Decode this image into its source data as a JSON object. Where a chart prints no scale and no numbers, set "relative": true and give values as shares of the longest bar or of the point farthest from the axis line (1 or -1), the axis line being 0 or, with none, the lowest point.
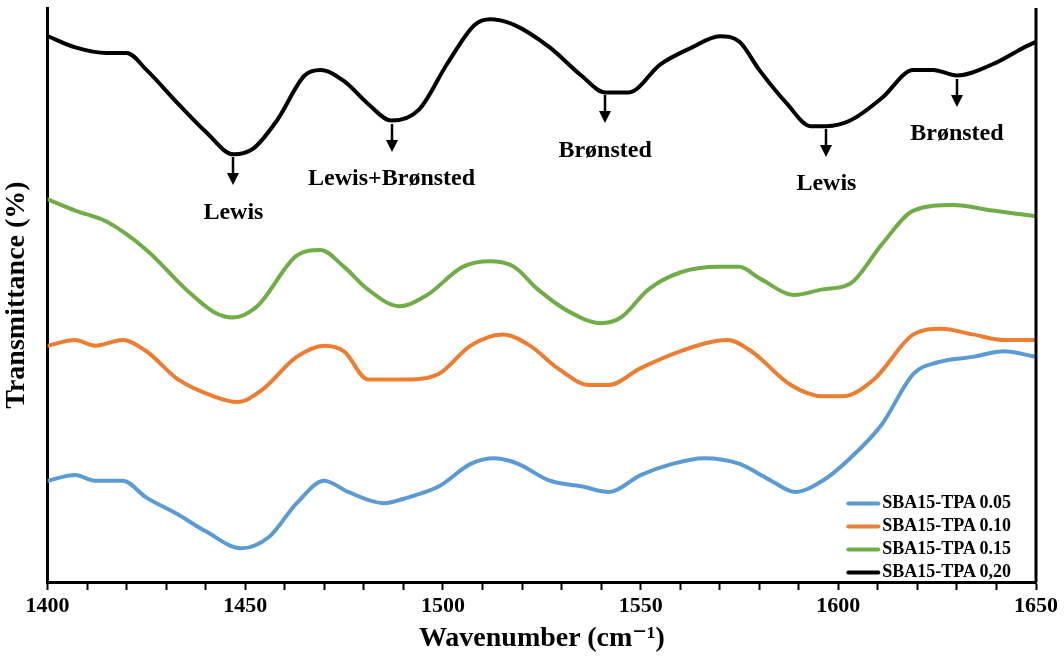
{
  "chart_data": {
    "type": "line",
    "relative": true,
    "xlabel": "Wavenumber (cm⁻¹)",
    "ylabel": "Transmittance (%)",
    "xlim": [
      1400,
      1650
    ],
    "xticks": [
      1400,
      {
        "value": 1410,
        "label": null
      },
      {
        "value": 1420,
        "label": null
      },
      {
        "value": 1430,
        "label": null
      },
      {
        "value": 1440,
        "label": null
      },
      1450,
      {
        "value": 1460,
        "label": null
      },
      {
        "value": 1470,
        "label": null
      },
      {
        "value": 1480,
        "label": null
      },
      {
        "value": 1490,
        "label": null
      },
      1500,
      {
        "value": 1510,
        "label": null
      },
      {
        "value": 1520,
        "label": null
      },
      {
        "value": 1530,
        "label": null
      },
      {
        "value": 1540,
        "label": null
      },
      1550,
      {
        "value": 1560,
        "label": null
      },
      {
        "value": 1570,
        "label": null
      },
      {
        "value": 1580,
        "label": null
      },
      {
        "value": 1590,
        "label": null
      },
      1600,
      {
        "value": 1610,
        "label": null
      },
      {
        "value": 1620,
        "label": null
      },
      {
        "value": 1630,
        "label": null
      },
      {
        "value": 1640,
        "label": null
      },
      1650
    ],
    "grid": false,
    "legend": "bottom right",
    "marker": "none",
    "line_style": "solid",
    "annotations": [
      {
        "text": "Lewis",
        "x": 1447,
        "y": 0.76
      },
      {
        "text": "Lewis+Brønsted",
        "x": 1487,
        "y": 0.82
      },
      {
        "text": "Brønsted",
        "x": 1541,
        "y": 0.87
      },
      {
        "text": "Lewis",
        "x": 1597,
        "y": 0.81
      },
      {
        "text": "Brønsted",
        "x": 1630,
        "y": 0.9
      }
    ],
    "series": [
      {
        "name": "SBA15-TPA 0.05",
        "color": "#5b9bd5",
        "x": [
          1400,
          1407,
          1412,
          1419,
          1425,
          1433,
          1440,
          1449,
          1456,
          1463,
          1470,
          1476,
          1485,
          1491,
          1499,
          1507,
          1513,
          1519,
          1527,
          1535,
          1542,
          1550,
          1558,
          1566,
          1575,
          1583,
          1589,
          1596,
          1603,
          1611,
          1619,
          1625,
          1634,
          1642,
          1650
        ],
        "values": [
          0.18,
          0.19,
          0.18,
          0.18,
          0.15,
          0.12,
          0.09,
          0.06,
          0.08,
          0.14,
          0.18,
          0.16,
          0.14,
          0.15,
          0.17,
          0.21,
          0.22,
          0.21,
          0.18,
          0.17,
          0.16,
          0.19,
          0.21,
          0.22,
          0.21,
          0.18,
          0.16,
          0.18,
          0.22,
          0.28,
          0.37,
          0.39,
          0.4,
          0.41,
          0.4
        ]
      },
      {
        "name": "SBA15-TPA 0.10",
        "color": "#ed7d31",
        "x": [
          1400,
          1407,
          1412,
          1419,
          1425,
          1433,
          1442,
          1448,
          1454,
          1463,
          1470,
          1475,
          1481,
          1492,
          1499,
          1507,
          1515,
          1522,
          1529,
          1537,
          1542,
          1550,
          1560,
          1572,
          1578,
          1588,
          1596,
          1601,
          1609,
          1619,
          1626,
          1634,
          1642,
          1650
        ],
        "values": [
          0.42,
          0.43,
          0.42,
          0.43,
          0.41,
          0.36,
          0.33,
          0.32,
          0.34,
          0.4,
          0.42,
          0.41,
          0.36,
          0.36,
          0.37,
          0.42,
          0.44,
          0.42,
          0.38,
          0.35,
          0.35,
          0.38,
          0.41,
          0.43,
          0.41,
          0.35,
          0.33,
          0.33,
          0.36,
          0.44,
          0.45,
          0.44,
          0.43,
          0.43
        ]
      },
      {
        "name": "SBA15-TPA 0.15",
        "color": "#70ad47",
        "x": [
          1400,
          1407,
          1415,
          1425,
          1435,
          1442,
          1447,
          1453,
          1463,
          1469,
          1475,
          1481,
          1489,
          1496,
          1505,
          1512,
          1518,
          1524,
          1532,
          1540,
          1545,
          1552,
          1560,
          1570,
          1575,
          1580,
          1589,
          1596,
          1603,
          1611,
          1619,
          1629,
          1639,
          1650
        ],
        "values": [
          0.68,
          0.66,
          0.64,
          0.59,
          0.52,
          0.48,
          0.47,
          0.49,
          0.58,
          0.59,
          0.56,
          0.52,
          0.49,
          0.51,
          0.56,
          0.57,
          0.56,
          0.52,
          0.48,
          0.46,
          0.47,
          0.52,
          0.55,
          0.56,
          0.56,
          0.54,
          0.51,
          0.52,
          0.53,
          0.6,
          0.66,
          0.67,
          0.66,
          0.65
        ]
      },
      {
        "name": "SBA15-TPA 0,20",
        "color": "#000000",
        "x": [
          1400,
          1407,
          1415,
          1420,
          1425,
          1433,
          1440,
          1447,
          1452,
          1458,
          1465,
          1469,
          1475,
          1481,
          1487,
          1494,
          1501,
          1508,
          1512,
          1518,
          1527,
          1535,
          1541,
          1547,
          1555,
          1563,
          1570,
          1575,
          1580,
          1587,
          1593,
          1597,
          1603,
          1611,
          1619,
          1624,
          1630,
          1639,
          1647,
          1650
        ],
        "values": [
          0.97,
          0.95,
          0.94,
          0.94,
          0.91,
          0.85,
          0.8,
          0.76,
          0.77,
          0.82,
          0.9,
          0.91,
          0.89,
          0.85,
          0.82,
          0.84,
          0.92,
          0.99,
          1,
          0.99,
          0.95,
          0.9,
          0.87,
          0.87,
          0.92,
          0.95,
          0.97,
          0.96,
          0.91,
          0.85,
          0.81,
          0.81,
          0.82,
          0.86,
          0.91,
          0.91,
          0.9,
          0.92,
          0.95,
          0.96
        ]
      }
    ]
  }
}
